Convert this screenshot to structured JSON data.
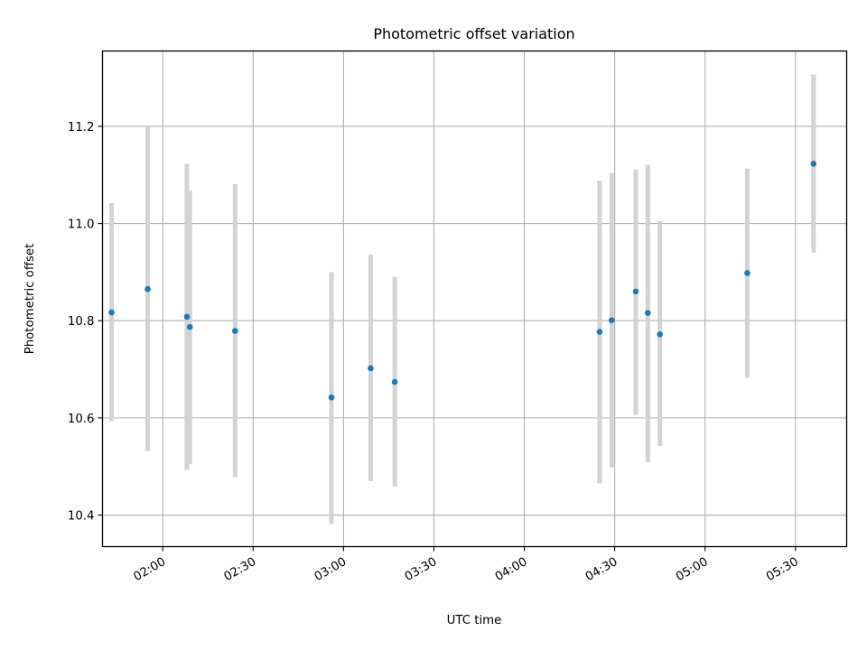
{
  "chart_data": {
    "type": "scatter",
    "title": "Photometric offset variation",
    "xlabel": "UTC time",
    "ylabel": "Photometric offset",
    "x_ticks": [
      "02:00",
      "02:30",
      "03:00",
      "03:30",
      "04:00",
      "04:30",
      "05:00",
      "05:30"
    ],
    "y_ticks": [
      "10.4",
      "10.6",
      "10.8",
      "11.0",
      "11.2"
    ],
    "y_tick_values": [
      10.4,
      10.6,
      10.8,
      11.0,
      11.2
    ],
    "xlim": [
      "01:40",
      "05:47"
    ],
    "ylim": [
      10.335,
      11.355
    ],
    "grid": true,
    "marker_color": "#1f77b4",
    "errorbar_color": "#d3d3d3",
    "series": [
      {
        "x": [
          "01:43",
          "01:55",
          "02:08",
          "02:09",
          "02:24",
          "02:56",
          "03:09",
          "03:17",
          "04:25",
          "04:29",
          "04:37",
          "04:41",
          "04:45",
          "05:14",
          "05:36"
        ],
        "y": [
          10.817,
          10.865,
          10.808,
          10.787,
          10.779,
          10.642,
          10.702,
          10.674,
          10.777,
          10.801,
          10.86,
          10.816,
          10.772,
          10.898,
          11.123
        ],
        "err_low": [
          10.593,
          10.532,
          10.493,
          10.505,
          10.478,
          10.382,
          10.47,
          10.458,
          10.465,
          10.498,
          10.606,
          10.509,
          10.542,
          10.682,
          10.94
        ],
        "err_high": [
          11.042,
          11.198,
          11.123,
          11.068,
          11.081,
          10.9,
          10.936,
          10.89,
          11.088,
          11.104,
          11.111,
          11.121,
          11.005,
          11.113,
          11.307
        ]
      }
    ]
  }
}
